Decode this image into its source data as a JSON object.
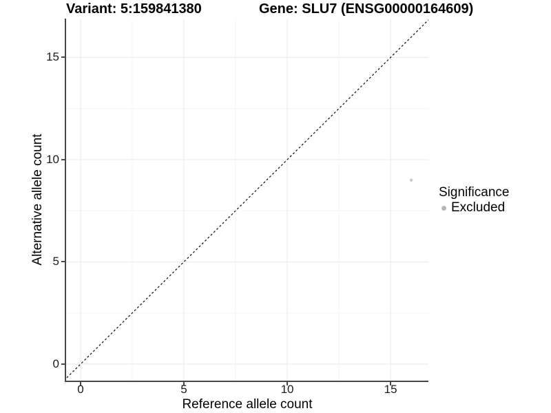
{
  "header": {
    "variant_title": "Variant: 5:159841380",
    "gene_title": "Gene: SLU7 (ENSG00000164609)"
  },
  "chart_data": {
    "type": "scatter",
    "title": "Variant: 5:159841380 — Gene: SLU7 (ENSG00000164609)",
    "xlabel": "Reference allele count",
    "ylabel": "Alternative allele count",
    "xlim": [
      -0.7,
      16.83
    ],
    "ylim": [
      -0.81,
      16.9
    ],
    "xticks": [
      0,
      5,
      10,
      15
    ],
    "yticks": [
      0,
      5,
      10,
      15
    ],
    "minor_xticks": [
      2.5,
      7.5,
      12.5
    ],
    "minor_yticks": [
      2.5,
      7.5,
      12.5
    ],
    "grid": "major+minor on white background",
    "series": [
      {
        "name": "Excluded",
        "color": "#c7c7c7",
        "point_radius": 2.2,
        "points": [
          {
            "x": 16,
            "y": 9
          }
        ]
      }
    ],
    "reference_line": {
      "type": "identity y=x",
      "style": "dashed",
      "color": "#1a1a1a"
    },
    "legend": {
      "position": "right",
      "title": "Significance",
      "entries": [
        {
          "label": "Excluded",
          "color": "#b5b5b5"
        }
      ]
    }
  },
  "colors": {
    "background": "#ffffff",
    "axis_line": "#474747",
    "grid_major": "#e9e9e9",
    "grid_minor": "#f4f4f4",
    "text": "#000000"
  }
}
